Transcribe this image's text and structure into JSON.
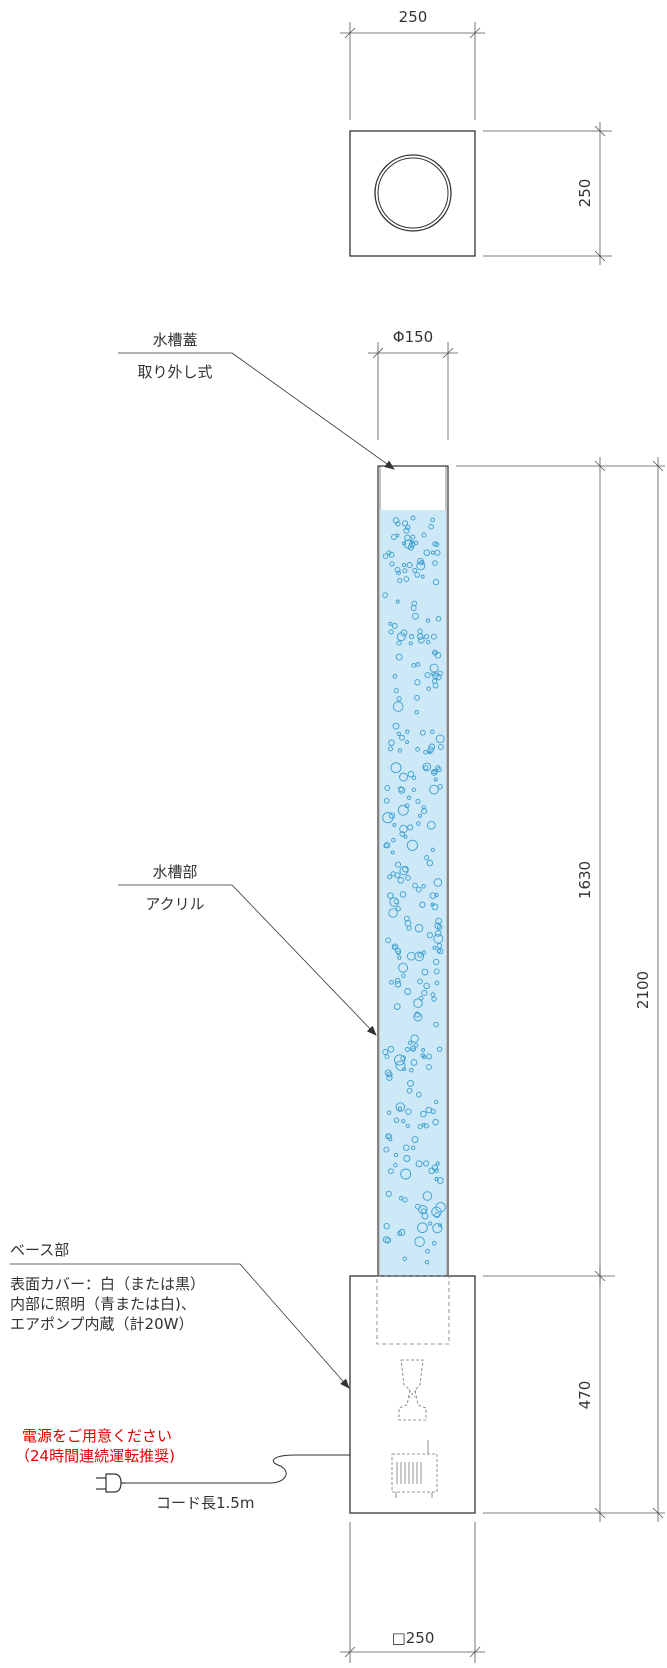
{
  "dimensions": {
    "top_width": "250",
    "top_height": "250",
    "tube_diameter": "Φ150",
    "tank_height": "1630",
    "total_height": "2100",
    "base_height": "470",
    "base_width": "□250"
  },
  "callouts": {
    "lid": {
      "title": "水槽蓋",
      "desc": "取り外し式"
    },
    "tank": {
      "title": "水槽部",
      "desc": "アクリル"
    },
    "base": {
      "title": "ベース部",
      "line1": "表面カバー：白（または黒）",
      "line2": "内部に照明（青または白)、",
      "line3": "エアポンプ内蔵（計20W）"
    }
  },
  "power": {
    "notice_line1": "電源をご用意ください",
    "notice_line2": "（24時間連続運転推奨)",
    "cord_label": "コード長1.5m"
  },
  "colors": {
    "line": "#333333",
    "water": "#cde8f6",
    "bubble": "#3d9fd0",
    "notice": "#e00000",
    "dim_line": "#555555"
  }
}
